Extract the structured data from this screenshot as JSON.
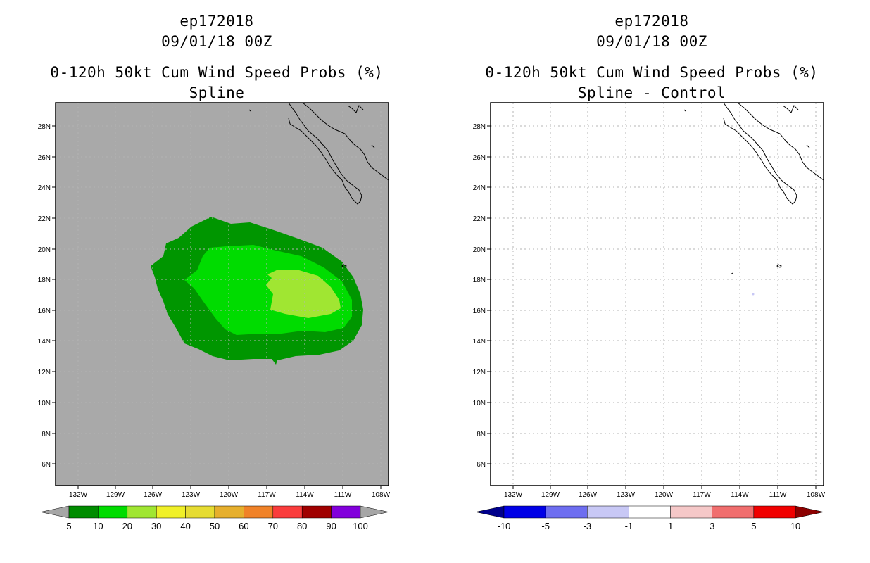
{
  "left_panel": {
    "storm_id": "ep172018",
    "datetime": "09/01/18 00Z",
    "product": "0-120h 50kt Cum Wind Speed Probs (%)",
    "method": "Spline"
  },
  "right_panel": {
    "storm_id": "ep172018",
    "datetime": "09/01/18 00Z",
    "product": "0-120h 50kt Cum Wind Speed Probs (%)",
    "method": "Spline - Control"
  },
  "lat_labels": [
    "28N",
    "26N",
    "24N",
    "22N",
    "20N",
    "18N",
    "16N",
    "14N",
    "12N",
    "10N",
    "8N",
    "6N"
  ],
  "lon_labels": [
    "132W",
    "129W",
    "126W",
    "123W",
    "120W",
    "117W",
    "114W",
    "111W",
    "108W"
  ],
  "left_colorbar": {
    "labels": [
      "5",
      "10",
      "20",
      "30",
      "40",
      "50",
      "60",
      "70",
      "80",
      "90",
      "100"
    ],
    "colors": [
      "#008c00",
      "#00dc00",
      "#a0e632",
      "#f0f028",
      "#e6dc32",
      "#e6af2d",
      "#f08228",
      "#fa3c3c",
      "#a00000",
      "#8200dc"
    ],
    "under_color": "#a6a6a6",
    "over_color": "#a6a6a6"
  },
  "right_colorbar": {
    "labels": [
      "-10",
      "-5",
      "-3",
      "-1",
      "1",
      "3",
      "5",
      "10"
    ],
    "colors": [
      "#0000e6",
      "#6e6ef0",
      "#c8c8f5",
      "#ffffff",
      "#f5c8c8",
      "#f06e6e",
      "#f00000"
    ],
    "under_color": "#00008c",
    "over_color": "#8c0000"
  },
  "colors": {
    "land_bg": "#a9a9a9",
    "prob_5_10": "#009600",
    "prob_10_20": "#00dc00",
    "prob_20_30": "#a0e632",
    "grid": "#b4b4b4"
  }
}
